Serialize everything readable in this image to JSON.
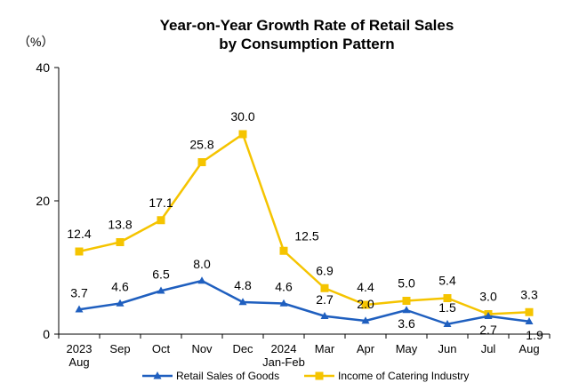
{
  "chart_data": {
    "type": "line",
    "title_line1": "Year-on-Year Growth Rate of Retail Sales",
    "title_line2": "by Consumption Pattern",
    "ylabel": "（%）",
    "ylim": [
      0,
      40
    ],
    "yticks": [
      0,
      20,
      40
    ],
    "categories": [
      [
        "2023",
        "Aug"
      ],
      [
        "Sep"
      ],
      [
        "Oct"
      ],
      [
        "Nov"
      ],
      [
        "Dec"
      ],
      [
        "2024",
        "Jan-Feb"
      ],
      [
        "Mar"
      ],
      [
        "Apr"
      ],
      [
        "May"
      ],
      [
        "Jun"
      ],
      [
        "Jul"
      ],
      [
        "Aug"
      ]
    ],
    "series": [
      {
        "name": "Retail Sales of Goods",
        "color": "#1f5fbf",
        "marker": "triangle",
        "values": [
          3.7,
          4.6,
          6.5,
          8.0,
          4.8,
          4.6,
          2.7,
          2.0,
          3.6,
          1.5,
          2.7,
          1.9
        ]
      },
      {
        "name": "Income of Catering Industry",
        "color": "#f5c400",
        "marker": "square",
        "values": [
          12.4,
          13.8,
          17.1,
          25.8,
          30.0,
          12.5,
          6.9,
          4.4,
          5.0,
          5.4,
          3.0,
          3.3
        ]
      }
    ],
    "legend_position": "bottom",
    "grid": false
  }
}
